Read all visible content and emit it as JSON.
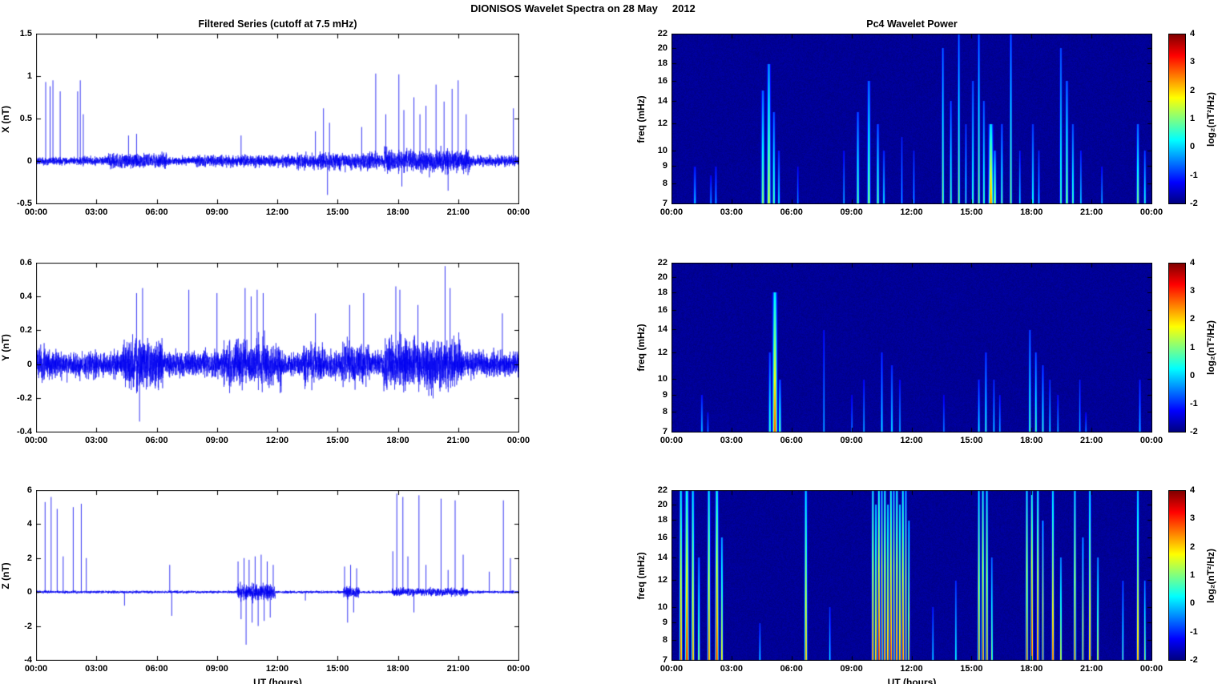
{
  "figure": {
    "title": "DIONISOS Wavelet Spectra on 28 May     2012"
  },
  "chart_data": [
    {
      "id": "x-filtered-series",
      "type": "line",
      "title": "Filtered Series (cutoff at 7.5 mHz)",
      "ylabel": "X (nT)",
      "xlim": [
        0,
        24
      ],
      "ylim": [
        -0.5,
        1.5
      ],
      "yticks": [
        1.5,
        1,
        0.5,
        0,
        -0.5
      ],
      "xticks": [
        "00:00",
        "03:00",
        "06:00",
        "09:00",
        "12:00",
        "15:00",
        "18:00",
        "21:00",
        "00:00"
      ],
      "line_color": "#0000f0",
      "noise_base": 0.045,
      "noise_segments": [
        [
          3.5,
          6.5,
          0.08
        ],
        [
          8,
          13,
          0.065
        ],
        [
          13,
          17.3,
          0.09
        ],
        [
          17.3,
          21.6,
          0.12
        ],
        [
          21.6,
          24,
          0.06
        ]
      ],
      "spikes": [
        [
          0.48,
          0.93
        ],
        [
          0.7,
          0.88
        ],
        [
          0.84,
          0.95
        ],
        [
          1.2,
          0.82
        ],
        [
          2.07,
          0.82
        ],
        [
          2.2,
          0.95
        ],
        [
          2.35,
          0.55
        ],
        [
          4.6,
          0.3
        ],
        [
          5.0,
          0.32
        ],
        [
          10.2,
          0.3
        ],
        [
          13.9,
          0.35
        ],
        [
          14.3,
          0.62
        ],
        [
          14.5,
          -0.4
        ],
        [
          14.6,
          0.45
        ],
        [
          16.2,
          0.4
        ],
        [
          16.9,
          1.03
        ],
        [
          17.4,
          0.55
        ],
        [
          18.05,
          1.02
        ],
        [
          18.2,
          -0.3
        ],
        [
          18.3,
          0.6
        ],
        [
          18.8,
          0.75
        ],
        [
          19.1,
          0.55
        ],
        [
          19.4,
          0.65
        ],
        [
          19.9,
          0.9
        ],
        [
          20.3,
          0.7
        ],
        [
          20.5,
          -0.35
        ],
        [
          20.7,
          0.85
        ],
        [
          21.0,
          0.95
        ],
        [
          21.4,
          0.55
        ],
        [
          23.75,
          0.62
        ]
      ]
    },
    {
      "id": "y-filtered-series",
      "type": "line",
      "ylabel": "Y (nT)",
      "xlim": [
        0,
        24
      ],
      "ylim": [
        -0.4,
        0.6
      ],
      "yticks": [
        0.6,
        0.4,
        0.2,
        0,
        -0.2,
        -0.4
      ],
      "xticks": [
        "00:00",
        "03:00",
        "06:00",
        "09:00",
        "12:00",
        "15:00",
        "18:00",
        "21:00",
        "00:00"
      ],
      "line_color": "#0000f0",
      "noise_base": 0.07,
      "noise_segments": [
        [
          0,
          1,
          0.09
        ],
        [
          4.3,
          6.3,
          0.14
        ],
        [
          9.3,
          12.2,
          0.13
        ],
        [
          13.3,
          14.4,
          0.11
        ],
        [
          15.2,
          16.6,
          0.12
        ],
        [
          17.3,
          21.2,
          0.14
        ]
      ],
      "spikes": [
        [
          5.0,
          0.42
        ],
        [
          5.15,
          -0.34
        ],
        [
          5.3,
          0.45
        ],
        [
          7.6,
          0.44
        ],
        [
          9.0,
          0.42
        ],
        [
          10.4,
          0.45
        ],
        [
          10.7,
          0.4
        ],
        [
          11.0,
          0.44
        ],
        [
          11.3,
          0.42
        ],
        [
          13.9,
          0.3
        ],
        [
          15.6,
          0.35
        ],
        [
          16.3,
          0.42
        ],
        [
          17.9,
          0.46
        ],
        [
          18.1,
          0.44
        ],
        [
          19.0,
          0.35
        ],
        [
          20.35,
          0.58
        ],
        [
          20.6,
          0.45
        ],
        [
          23.2,
          0.3
        ]
      ]
    },
    {
      "id": "z-filtered-series",
      "type": "line",
      "ylabel": "Z (nT)",
      "xlabel": "UT (hours)",
      "xlim": [
        0,
        24
      ],
      "ylim": [
        -4,
        6
      ],
      "yticks": [
        6,
        4,
        2,
        0,
        -2,
        -4
      ],
      "xticks": [
        "00:00",
        "03:00",
        "06:00",
        "09:00",
        "12:00",
        "15:00",
        "18:00",
        "21:00",
        "00:00"
      ],
      "line_color": "#0000f0",
      "noise_base": 0.07,
      "noise_segments": [
        [
          10,
          11.9,
          0.45
        ],
        [
          15.3,
          16.1,
          0.35
        ],
        [
          17.7,
          21.5,
          0.22
        ]
      ],
      "spikes": [
        [
          0.45,
          5.3
        ],
        [
          0.75,
          5.6
        ],
        [
          1.05,
          4.9
        ],
        [
          1.35,
          2.1
        ],
        [
          1.85,
          5.0
        ],
        [
          2.25,
          5.2
        ],
        [
          2.5,
          2.0
        ],
        [
          4.4,
          -0.8
        ],
        [
          6.65,
          1.6
        ],
        [
          6.75,
          -1.4
        ],
        [
          10.05,
          1.8
        ],
        [
          10.2,
          -1.6
        ],
        [
          10.35,
          2.0
        ],
        [
          10.45,
          -3.1
        ],
        [
          10.6,
          1.9
        ],
        [
          10.75,
          -1.8
        ],
        [
          10.9,
          2.1
        ],
        [
          11.05,
          -2.0
        ],
        [
          11.2,
          2.2
        ],
        [
          11.35,
          -1.7
        ],
        [
          11.5,
          1.8
        ],
        [
          11.65,
          -1.5
        ],
        [
          11.8,
          1.6
        ],
        [
          13.4,
          -0.5
        ],
        [
          15.35,
          1.5
        ],
        [
          15.5,
          -1.8
        ],
        [
          15.65,
          1.6
        ],
        [
          15.8,
          -1.2
        ],
        [
          15.95,
          1.4
        ],
        [
          17.75,
          2.4
        ],
        [
          17.95,
          5.8
        ],
        [
          18.25,
          5.6
        ],
        [
          18.5,
          2.1
        ],
        [
          18.8,
          -1.2
        ],
        [
          19.05,
          5.7
        ],
        [
          19.4,
          1.6
        ],
        [
          20.15,
          5.5
        ],
        [
          20.5,
          1.3
        ],
        [
          20.85,
          5.4
        ],
        [
          21.25,
          2.2
        ],
        [
          22.55,
          1.2
        ],
        [
          23.25,
          5.4
        ],
        [
          23.6,
          2.0
        ]
      ]
    },
    {
      "id": "x-wavelet-power",
      "type": "heatmap",
      "title": "Pc4 Wavelet Power",
      "ylabel": "freq (mHz)",
      "xlim": [
        0,
        24
      ],
      "flim": [
        7,
        22
      ],
      "log_y": true,
      "yticks": [
        22,
        20,
        18,
        16,
        14,
        12,
        10,
        9,
        8,
        7
      ],
      "xticks": [
        "00:00",
        "03:00",
        "06:00",
        "09:00",
        "12:00",
        "15:00",
        "18:00",
        "21:00",
        "00:00"
      ],
      "clim": [
        -2,
        4
      ],
      "colorbar_label": "log₂(nT²/Hz)",
      "colorbar_ticks": [
        4,
        3,
        2,
        1,
        0,
        -1,
        -2
      ],
      "streaks": [
        [
          1.15,
          0.06,
          0.35,
          9
        ],
        [
          1.95,
          0.05,
          0.3,
          8.5
        ],
        [
          2.2,
          0.05,
          0.32,
          9
        ],
        [
          4.55,
          0.07,
          0.55,
          15
        ],
        [
          4.85,
          0.08,
          0.62,
          18
        ],
        [
          5.1,
          0.06,
          0.5,
          13
        ],
        [
          5.35,
          0.05,
          0.4,
          10
        ],
        [
          6.3,
          0.04,
          0.3,
          9
        ],
        [
          8.6,
          0.04,
          0.35,
          10
        ],
        [
          9.3,
          0.06,
          0.5,
          13
        ],
        [
          9.85,
          0.07,
          0.55,
          16
        ],
        [
          10.3,
          0.06,
          0.5,
          12
        ],
        [
          10.6,
          0.05,
          0.4,
          10
        ],
        [
          11.5,
          0.04,
          0.35,
          11
        ],
        [
          12.1,
          0.04,
          0.35,
          10
        ],
        [
          13.55,
          0.05,
          0.55,
          20
        ],
        [
          13.95,
          0.05,
          0.5,
          14
        ],
        [
          14.35,
          0.05,
          0.55,
          22
        ],
        [
          14.7,
          0.04,
          0.45,
          12
        ],
        [
          15.05,
          0.05,
          0.5,
          16
        ],
        [
          15.35,
          0.05,
          0.55,
          22
        ],
        [
          15.6,
          0.05,
          0.5,
          14
        ],
        [
          15.95,
          0.1,
          0.78,
          12
        ],
        [
          16.15,
          0.06,
          0.6,
          10
        ],
        [
          16.5,
          0.05,
          0.5,
          12
        ],
        [
          16.95,
          0.05,
          0.55,
          22
        ],
        [
          17.4,
          0.04,
          0.4,
          10
        ],
        [
          18.05,
          0.05,
          0.45,
          12
        ],
        [
          18.35,
          0.04,
          0.4,
          10
        ],
        [
          19.45,
          0.05,
          0.5,
          20
        ],
        [
          19.75,
          0.06,
          0.55,
          16
        ],
        [
          20.05,
          0.05,
          0.5,
          12
        ],
        [
          20.45,
          0.04,
          0.4,
          10
        ],
        [
          21.5,
          0.04,
          0.35,
          9
        ],
        [
          23.3,
          0.06,
          0.55,
          12
        ],
        [
          23.65,
          0.05,
          0.45,
          10
        ]
      ]
    },
    {
      "id": "y-wavelet-power",
      "type": "heatmap",
      "ylabel": "freq (mHz)",
      "xlim": [
        0,
        24
      ],
      "flim": [
        7,
        22
      ],
      "log_y": true,
      "yticks": [
        22,
        20,
        18,
        16,
        14,
        12,
        10,
        9,
        8,
        7
      ],
      "xticks": [
        "00:00",
        "03:00",
        "06:00",
        "09:00",
        "12:00",
        "15:00",
        "18:00",
        "21:00",
        "00:00"
      ],
      "clim": [
        -2,
        4
      ],
      "colorbar_label": "log₂(nT²/Hz)",
      "colorbar_ticks": [
        4,
        3,
        2,
        1,
        0,
        -1,
        -2
      ],
      "streaks": [
        [
          1.5,
          0.05,
          0.35,
          9
        ],
        [
          1.8,
          0.04,
          0.3,
          8
        ],
        [
          4.9,
          0.06,
          0.45,
          12
        ],
        [
          5.15,
          0.1,
          0.82,
          18
        ],
        [
          5.4,
          0.06,
          0.5,
          10
        ],
        [
          7.6,
          0.04,
          0.35,
          14
        ],
        [
          9.0,
          0.04,
          0.3,
          9
        ],
        [
          9.6,
          0.04,
          0.35,
          10
        ],
        [
          10.5,
          0.05,
          0.4,
          12
        ],
        [
          11.0,
          0.05,
          0.4,
          11
        ],
        [
          11.4,
          0.04,
          0.35,
          10
        ],
        [
          13.6,
          0.04,
          0.3,
          9
        ],
        [
          15.35,
          0.05,
          0.4,
          10
        ],
        [
          15.7,
          0.05,
          0.45,
          12
        ],
        [
          16.1,
          0.04,
          0.4,
          10
        ],
        [
          16.4,
          0.04,
          0.35,
          9
        ],
        [
          17.9,
          0.05,
          0.5,
          14
        ],
        [
          18.2,
          0.05,
          0.5,
          12
        ],
        [
          18.55,
          0.05,
          0.45,
          11
        ],
        [
          18.9,
          0.04,
          0.4,
          10
        ],
        [
          19.3,
          0.04,
          0.35,
          9
        ],
        [
          20.4,
          0.04,
          0.35,
          10
        ],
        [
          20.7,
          0.04,
          0.3,
          8
        ],
        [
          23.4,
          0.05,
          0.35,
          10
        ]
      ]
    },
    {
      "id": "z-wavelet-power",
      "type": "heatmap",
      "ylabel": "freq (mHz)",
      "xlabel": "UT (hours)",
      "xlim": [
        0,
        24
      ],
      "flim": [
        7,
        22
      ],
      "log_y": true,
      "yticks": [
        22,
        20,
        18,
        16,
        14,
        12,
        10,
        9,
        8,
        7
      ],
      "xticks": [
        "00:00",
        "03:00",
        "06:00",
        "09:00",
        "12:00",
        "15:00",
        "18:00",
        "21:00",
        "00:00"
      ],
      "clim": [
        -2,
        4
      ],
      "colorbar_label": "log₂(nT²/Hz)",
      "colorbar_ticks": [
        4,
        3,
        2,
        1,
        0,
        -1,
        -2
      ],
      "streaks": [
        [
          0.45,
          0.06,
          0.85,
          22
        ],
        [
          0.75,
          0.08,
          0.9,
          22
        ],
        [
          1.05,
          0.06,
          0.8,
          22
        ],
        [
          1.35,
          0.05,
          0.6,
          14
        ],
        [
          1.85,
          0.06,
          0.85,
          22
        ],
        [
          2.25,
          0.07,
          0.9,
          22
        ],
        [
          2.5,
          0.05,
          0.7,
          16
        ],
        [
          4.4,
          0.04,
          0.4,
          9
        ],
        [
          6.7,
          0.06,
          0.78,
          22
        ],
        [
          7.9,
          0.04,
          0.4,
          10
        ],
        [
          10.05,
          0.05,
          0.9,
          22
        ],
        [
          10.2,
          0.04,
          0.85,
          20
        ],
        [
          10.35,
          0.05,
          0.95,
          22
        ],
        [
          10.5,
          0.04,
          0.9,
          22
        ],
        [
          10.65,
          0.05,
          0.92,
          22
        ],
        [
          10.8,
          0.04,
          0.88,
          20
        ],
        [
          10.95,
          0.05,
          0.95,
          22
        ],
        [
          11.1,
          0.04,
          0.9,
          22
        ],
        [
          11.25,
          0.05,
          0.93,
          22
        ],
        [
          11.4,
          0.04,
          0.88,
          20
        ],
        [
          11.55,
          0.05,
          0.9,
          22
        ],
        [
          11.7,
          0.04,
          0.85,
          22
        ],
        [
          11.85,
          0.04,
          0.8,
          18
        ],
        [
          13.05,
          0.04,
          0.4,
          10
        ],
        [
          14.2,
          0.04,
          0.45,
          12
        ],
        [
          15.35,
          0.05,
          0.82,
          22
        ],
        [
          15.55,
          0.05,
          0.9,
          22
        ],
        [
          15.75,
          0.05,
          0.85,
          22
        ],
        [
          16.0,
          0.04,
          0.6,
          14
        ],
        [
          17.75,
          0.05,
          0.88,
          22
        ],
        [
          18.0,
          0.05,
          0.95,
          22
        ],
        [
          18.3,
          0.05,
          0.9,
          22
        ],
        [
          18.55,
          0.04,
          0.8,
          18
        ],
        [
          19.05,
          0.05,
          0.85,
          22
        ],
        [
          19.45,
          0.04,
          0.7,
          14
        ],
        [
          20.15,
          0.05,
          0.85,
          22
        ],
        [
          20.55,
          0.04,
          0.75,
          16
        ],
        [
          20.9,
          0.05,
          0.82,
          22
        ],
        [
          21.3,
          0.04,
          0.7,
          14
        ],
        [
          22.55,
          0.04,
          0.5,
          12
        ],
        [
          23.3,
          0.05,
          0.8,
          22
        ],
        [
          23.65,
          0.04,
          0.6,
          12
        ]
      ]
    }
  ]
}
